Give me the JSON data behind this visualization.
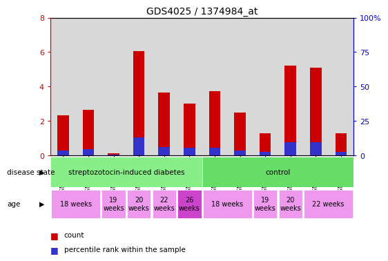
{
  "title": "GDS4025 / 1374984_at",
  "samples": [
    "GSM317235",
    "GSM317267",
    "GSM317265",
    "GSM317232",
    "GSM317231",
    "GSM317236",
    "GSM317234",
    "GSM317264",
    "GSM317266",
    "GSM317177",
    "GSM317233",
    "GSM317237"
  ],
  "count_values": [
    2.35,
    2.65,
    0.12,
    6.05,
    3.65,
    3.0,
    3.75,
    2.5,
    1.3,
    5.2,
    5.1,
    1.3
  ],
  "percentile_values": [
    0.28,
    0.35,
    0.05,
    1.05,
    0.5,
    0.45,
    0.45,
    0.28,
    0.22,
    0.78,
    0.78,
    0.22
  ],
  "ylim_left": [
    0,
    8
  ],
  "ylim_right": [
    0,
    100
  ],
  "yticks_left": [
    0,
    2,
    4,
    6,
    8
  ],
  "yticks_right": [
    0,
    25,
    50,
    75,
    100
  ],
  "ytick_labels_right": [
    "0",
    "25",
    "50",
    "75",
    "100%"
  ],
  "bar_color_count": "#cc0000",
  "bar_color_percentile": "#3333cc",
  "bar_width": 0.45,
  "col_bg_color": "#d8d8d8",
  "legend_count_label": "count",
  "legend_percentile_label": "percentile rank within the sample",
  "disease_state_label": "disease state",
  "age_label": "age",
  "bg_color": "#ffffff",
  "axis_left_color": "#cc0000",
  "axis_right_color": "#0000cc",
  "disease_groups": [
    {
      "label": "streptozotocin-induced diabetes",
      "start": 0,
      "end": 6,
      "color": "#88ee88"
    },
    {
      "label": "control",
      "start": 6,
      "end": 12,
      "color": "#66dd66"
    }
  ],
  "age_groups": [
    {
      "start": 0,
      "end": 2,
      "label": "18 weeks",
      "color": "#ee99ee"
    },
    {
      "start": 2,
      "end": 3,
      "label": "19\nweeks",
      "color": "#ee99ee"
    },
    {
      "start": 3,
      "end": 4,
      "label": "20\nweeks",
      "color": "#ee99ee"
    },
    {
      "start": 4,
      "end": 5,
      "label": "22\nweeks",
      "color": "#ee99ee"
    },
    {
      "start": 5,
      "end": 6,
      "label": "26\nweeks",
      "color": "#cc44cc"
    },
    {
      "start": 6,
      "end": 8,
      "label": "18 weeks",
      "color": "#ee99ee"
    },
    {
      "start": 8,
      "end": 9,
      "label": "19\nweeks",
      "color": "#ee99ee"
    },
    {
      "start": 9,
      "end": 10,
      "label": "20\nweeks",
      "color": "#ee99ee"
    },
    {
      "start": 10,
      "end": 12,
      "label": "22 weeks",
      "color": "#ee99ee"
    }
  ]
}
